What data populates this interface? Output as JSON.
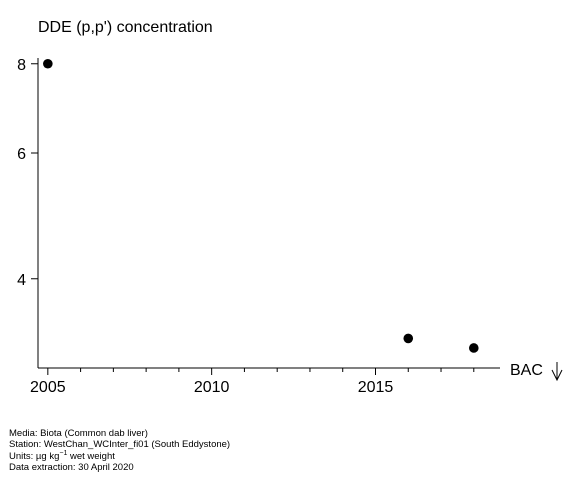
{
  "chart_data": {
    "type": "scatter",
    "title": "DDE (p,p') concentration",
    "xlabel": "",
    "ylabel": "",
    "xlim": [
      2004.7,
      2018.8
    ],
    "ylim": [
      3.0,
      8.15
    ],
    "y_scale": "log",
    "x_ticks": [
      2005,
      2010,
      2015
    ],
    "y_ticks": [
      4,
      6,
      8
    ],
    "points": [
      {
        "x": 2005,
        "y": 8.0
      },
      {
        "x": 2016,
        "y": 3.3
      },
      {
        "x": 2018,
        "y": 3.2
      }
    ],
    "annotations": [
      {
        "label": "BAC",
        "symbol": "↓"
      }
    ],
    "grid": false,
    "marker_color": "#000000"
  },
  "footer": {
    "media": "Media: Biota (Common dab liver)",
    "station": "Station: WestChan_WCInter_fi01 (South Eddystone)",
    "units_prefix": "Units:  µg kg",
    "units_exp": "−1",
    "units_suffix": " wet weight",
    "extraction": "Data extraction: 30 April 2020"
  }
}
